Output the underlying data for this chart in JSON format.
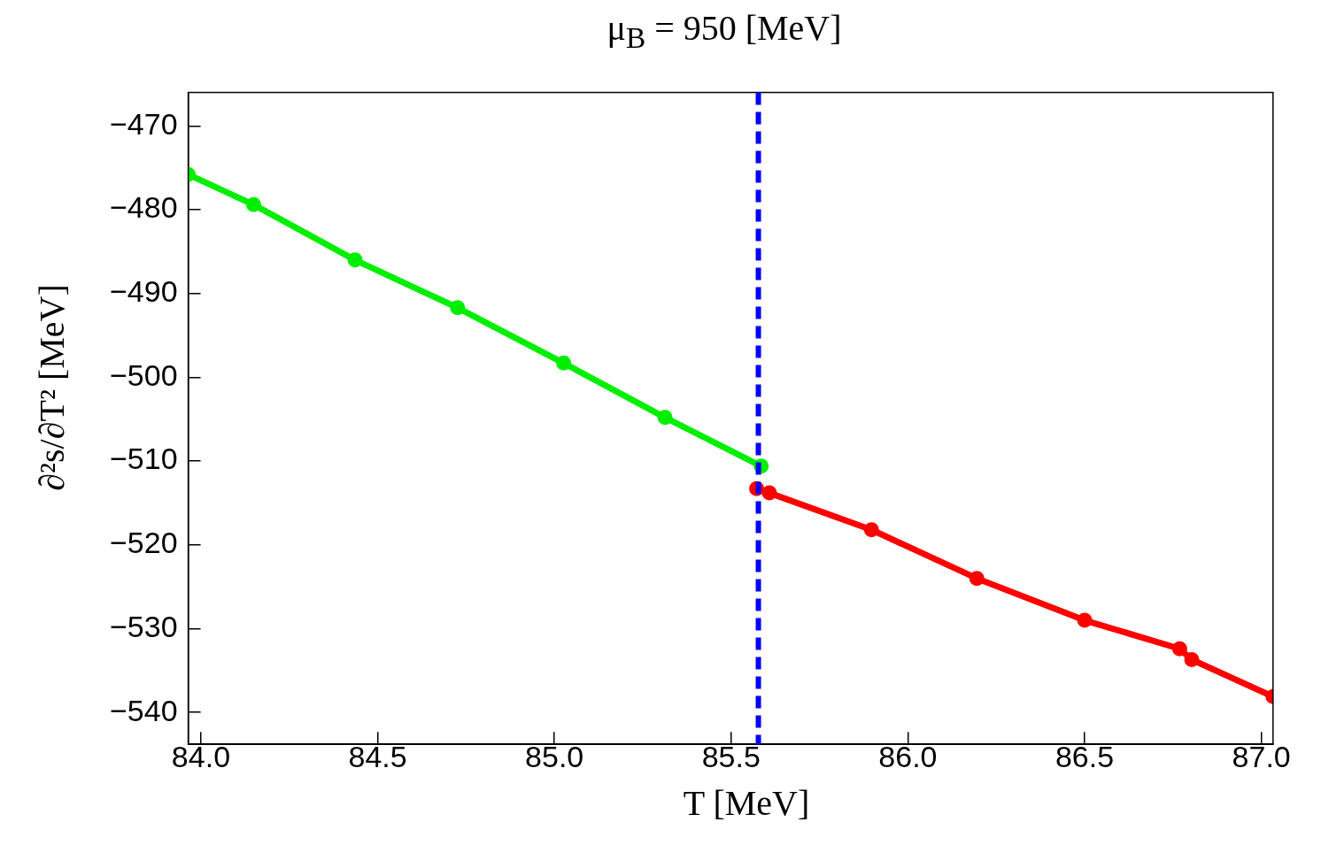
{
  "chart_data": {
    "type": "line",
    "title": "μ$_{B}$ = 950 [MeV]",
    "xlabel": "T [MeV]",
    "ylabel": "∂²s/∂T² [MeV]",
    "series": [
      {
        "color": "#00ee00",
        "x": [
          83.964,
          84.149,
          84.436,
          84.726,
          85.026,
          85.313,
          85.585
        ],
        "values": [
          -475.8,
          -479.4,
          -486.0,
          -491.7,
          -498.3,
          -504.8,
          -510.6
        ]
      },
      {
        "color": "#ff0000",
        "x": [
          85.572,
          85.608,
          85.897,
          86.195,
          86.5,
          86.769,
          86.803,
          87.033
        ],
        "values": [
          -513.3,
          -513.8,
          -518.2,
          -524.0,
          -529.0,
          -532.4,
          -533.7,
          -538.1
        ]
      }
    ],
    "xlim": [
      83.964,
      87.033
    ],
    "ylim": [
      -543.8,
      -466.0
    ],
    "xticks": [
      {
        "value": 84,
        "label": "84.0"
      },
      84.5,
      {
        "value": 85,
        "label": "85.0"
      },
      85.5,
      {
        "value": 86,
        "label": "86.0"
      },
      86.5,
      {
        "value": 87,
        "label": "87.0"
      }
    ],
    "yticks": [
      -540,
      -530,
      -520,
      -510,
      -500,
      -490,
      -480,
      -470
    ],
    "ref_lines": [
      {
        "axis": "x",
        "value": 85.577,
        "color": "#0000ff",
        "line_style": "dashed"
      }
    ],
    "marker": "circle",
    "line_style": "solid",
    "grid": false,
    "legend": false
  }
}
